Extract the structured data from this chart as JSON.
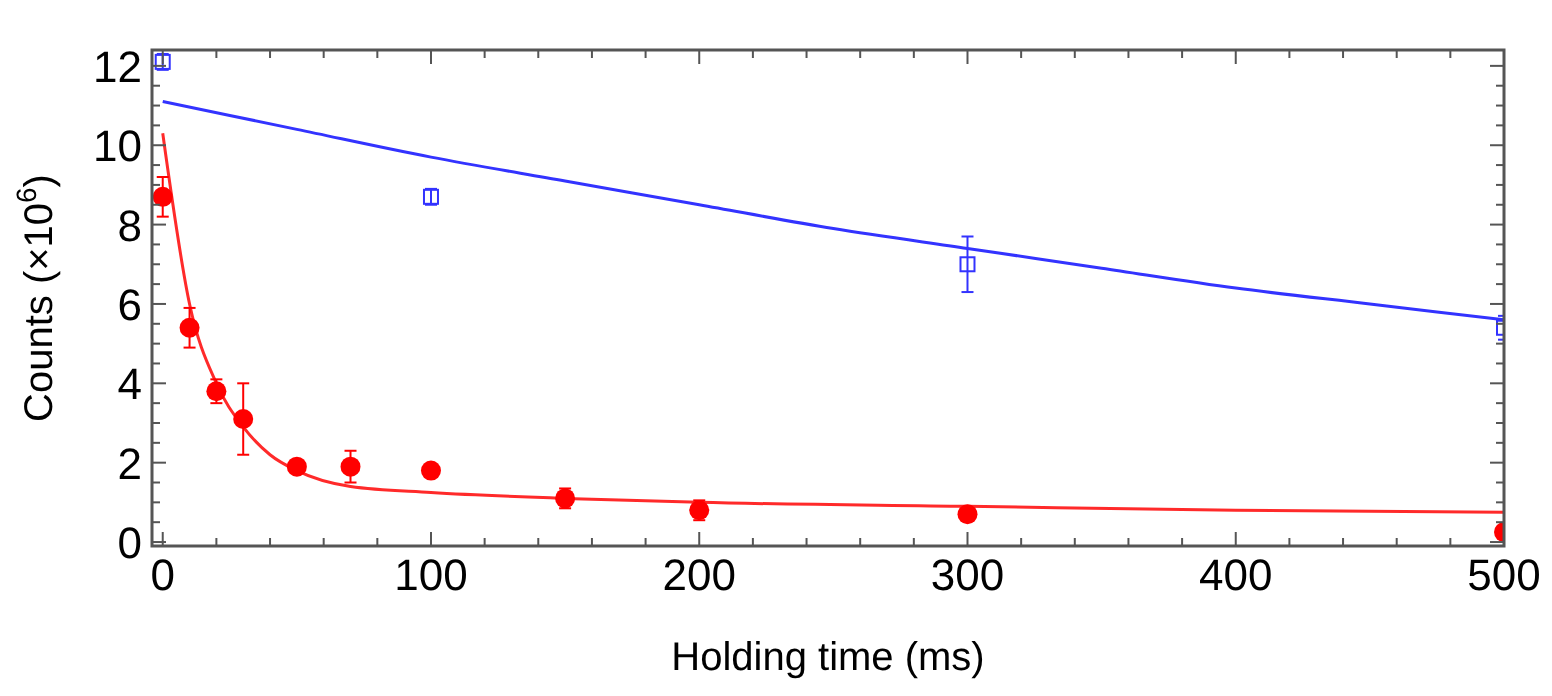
{
  "chart_data": {
    "type": "scatter",
    "xlabel": "Holding time (ms)",
    "ylabel": "Counts (×10$^{6}$)",
    "xlim": [
      -4,
      500
    ],
    "ylim": [
      -0.1,
      12.4
    ],
    "xticks": [
      0,
      {
        "value": 20,
        "label": null
      },
      {
        "value": 40,
        "label": null
      },
      {
        "value": 60,
        "label": null
      },
      {
        "value": 80,
        "label": null
      },
      100,
      {
        "value": 120,
        "label": null
      },
      {
        "value": 140,
        "label": null
      },
      {
        "value": 160,
        "label": null
      },
      {
        "value": 180,
        "label": null
      },
      200,
      {
        "value": 220,
        "label": null
      },
      {
        "value": 240,
        "label": null
      },
      {
        "value": 260,
        "label": null
      },
      {
        "value": 280,
        "label": null
      },
      300,
      {
        "value": 320,
        "label": null
      },
      {
        "value": 340,
        "label": null
      },
      {
        "value": 360,
        "label": null
      },
      {
        "value": 380,
        "label": null
      },
      400,
      {
        "value": 420,
        "label": null
      },
      {
        "value": 440,
        "label": null
      },
      {
        "value": 460,
        "label": null
      },
      {
        "value": 480,
        "label": null
      },
      500
    ],
    "yticks": [
      0,
      {
        "value": 0.5,
        "label": null
      },
      {
        "value": 1,
        "label": null
      },
      {
        "value": 1.5,
        "label": null
      },
      2,
      {
        "value": 2.5,
        "label": null
      },
      {
        "value": 3,
        "label": null
      },
      {
        "value": 3.5,
        "label": null
      },
      4,
      {
        "value": 4.5,
        "label": null
      },
      {
        "value": 5,
        "label": null
      },
      {
        "value": 5.5,
        "label": null
      },
      6,
      {
        "value": 6.5,
        "label": null
      },
      {
        "value": 7,
        "label": null
      },
      {
        "value": 7.5,
        "label": null
      },
      8,
      {
        "value": 8.5,
        "label": null
      },
      {
        "value": 9,
        "label": null
      },
      {
        "value": 9.5,
        "label": null
      },
      10,
      {
        "value": 10.5,
        "label": null
      },
      {
        "value": 11,
        "label": null
      },
      {
        "value": 11.5,
        "label": null
      },
      12
    ],
    "grid": false,
    "series": [
      {
        "type": "line",
        "color": "#3333ff",
        "marker": "none",
        "line_style": "solid",
        "x": [
          0,
          50,
          100,
          150,
          200,
          250,
          300,
          350,
          400,
          450,
          500
        ],
        "values": [
          11.1,
          10.4,
          9.7,
          9.1,
          8.5,
          7.9,
          7.4,
          6.9,
          6.4,
          6.0,
          5.6
        ]
      },
      {
        "type": "scatter",
        "color": "#3333ff",
        "marker": "square",
        "x": [
          0,
          100,
          300,
          500
        ],
        "values": [
          12.1,
          8.7,
          7.0,
          5.4
        ],
        "errors": [
          0.2,
          0.2,
          0.7,
          0.3
        ]
      },
      {
        "type": "line",
        "color": "#ff2a2a",
        "marker": "none",
        "line_style": "solid",
        "x": [
          0,
          10,
          20,
          30,
          40,
          50,
          70,
          100,
          150,
          200,
          300,
          400,
          500
        ],
        "values": [
          10.3,
          6.0,
          4.0,
          2.9,
          2.2,
          1.8,
          1.4,
          1.25,
          1.1,
          1.0,
          0.9,
          0.8,
          0.75
        ]
      },
      {
        "type": "scatter",
        "color": "#ff0000",
        "marker": "circle",
        "x": [
          0,
          10,
          20,
          30,
          50,
          70,
          100,
          150,
          200,
          300,
          500
        ],
        "values": [
          8.7,
          5.4,
          3.8,
          3.1,
          1.9,
          1.9,
          1.8,
          1.1,
          0.8,
          0.7,
          0.25
        ],
        "errors": [
          0.5,
          0.5,
          0.3,
          0.9,
          null,
          0.4,
          null,
          0.25,
          0.25,
          null,
          null
        ]
      }
    ]
  }
}
